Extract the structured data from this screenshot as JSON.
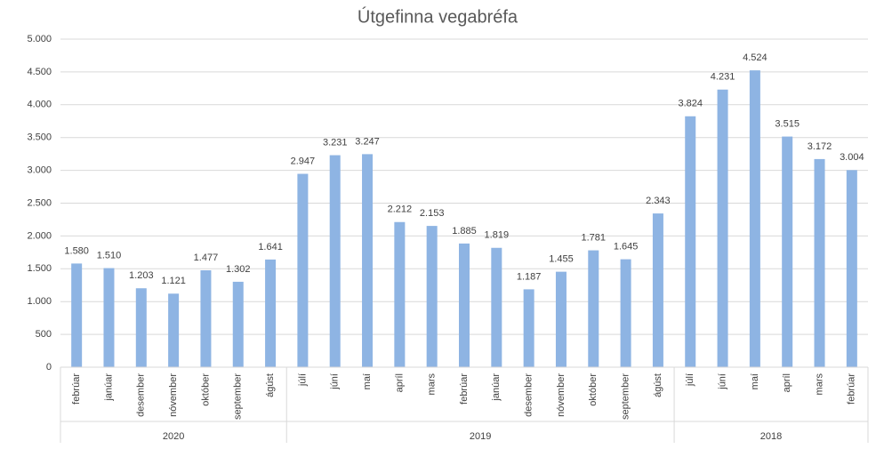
{
  "chart_data": {
    "type": "bar",
    "title": "Útgefinna vegabréfa",
    "color": "#8eb4e3",
    "grid": true,
    "ylim": [
      0,
      5000
    ],
    "yticks": [
      0,
      500,
      {
        "value": 1000,
        "label": "1.000"
      },
      {
        "value": 1500,
        "label": "1.500"
      },
      {
        "value": 2000,
        "label": "2.000"
      },
      {
        "value": 2500,
        "label": "2.500"
      },
      {
        "value": 3000,
        "label": "3.000"
      },
      {
        "value": 3500,
        "label": "3.500"
      },
      {
        "value": 4000,
        "label": "4.000"
      },
      {
        "value": 4500,
        "label": "4.500"
      },
      {
        "value": 5000,
        "label": "5.000"
      }
    ],
    "groups": [
      {
        "label": "2020",
        "categories": [
          "febrúar",
          "janúar",
          "desember",
          "nóvember",
          "október",
          "september",
          "ágúst"
        ],
        "values": [
          1580,
          1510,
          1203,
          1121,
          1477,
          1302,
          1641
        ],
        "value_labels": [
          "1.580",
          "1.510",
          "1.203",
          "1.121",
          "1.477",
          "1.302",
          "1.641"
        ]
      },
      {
        "label": "2019",
        "categories": [
          "júlí",
          "júní",
          "maí",
          "apríl",
          "mars",
          "febrúar",
          "janúar",
          "desember",
          "nóvember",
          "október",
          "september",
          "ágúst"
        ],
        "values": [
          2947,
          3231,
          3247,
          2212,
          2153,
          1885,
          1819,
          1187,
          1455,
          1781,
          1645,
          2343
        ],
        "value_labels": [
          "2.947",
          "3.231",
          "3.247",
          "2.212",
          "2.153",
          "1.885",
          "1.819",
          "1.187",
          "1.455",
          "1.781",
          "1.645",
          "2.343"
        ]
      },
      {
        "label": "2018",
        "categories": [
          "júlí",
          "júní",
          "maí",
          "apríl",
          "mars",
          "febrúar"
        ],
        "values": [
          3824,
          4231,
          4524,
          3515,
          3172,
          3004
        ],
        "value_labels": [
          "3.824",
          "4.231",
          "4.524",
          "3.515",
          "3.172",
          "3.004"
        ]
      }
    ]
  }
}
